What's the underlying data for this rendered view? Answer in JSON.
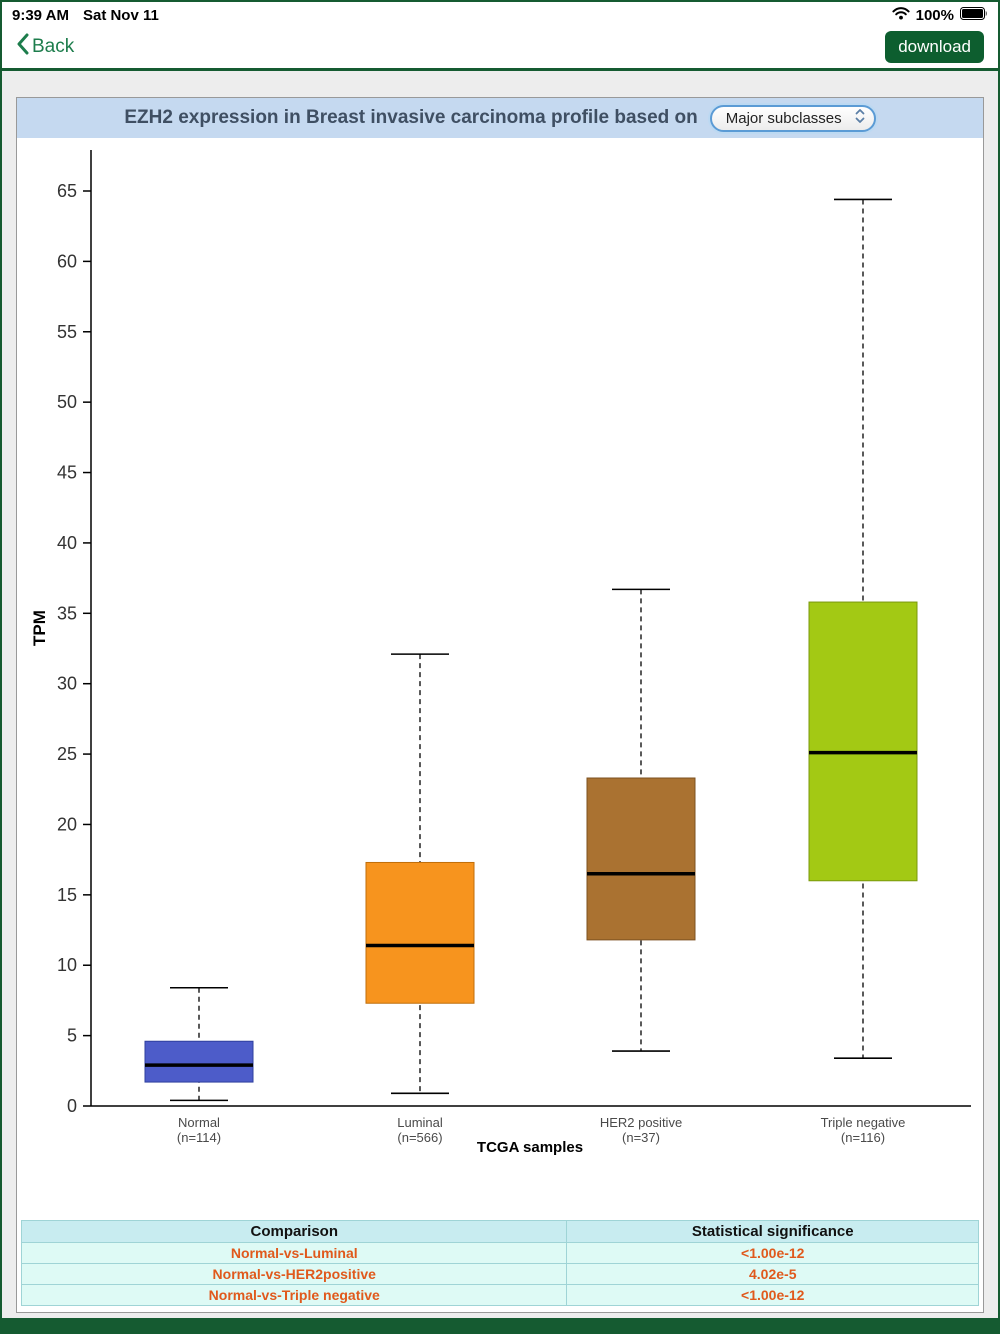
{
  "status_bar": {
    "time": "9:39 AM",
    "date": "Sat Nov 11",
    "battery_percent": "100%"
  },
  "nav": {
    "back_label": "Back",
    "download_label": "download"
  },
  "panel": {
    "title": "EZH2 expression in Breast invasive carcinoma profile based on",
    "subclass_selector_value": "Major subclasses"
  },
  "chart_data": {
    "type": "boxplot",
    "title": "EZH2 expression in Breast invasive carcinoma profile based on",
    "ylabel": "TPM",
    "xlabel": "TCGA samples",
    "ylim": [
      0,
      67
    ],
    "yticks": [
      0,
      5,
      10,
      15,
      20,
      25,
      30,
      35,
      40,
      45,
      50,
      55,
      60,
      65
    ],
    "grid": false,
    "groups": [
      {
        "label": "Normal",
        "n_label": "(n=114)",
        "color": "#4d5cc9",
        "border": "#2e3f9e",
        "min": 0.4,
        "q1": 1.7,
        "median": 2.9,
        "q3": 4.6,
        "max": 8.4
      },
      {
        "label": "Luminal",
        "n_label": "(n=566)",
        "color": "#f7941e",
        "border": "#c06e0a",
        "min": 0.9,
        "q1": 7.3,
        "median": 11.4,
        "q3": 17.3,
        "max": 32.1
      },
      {
        "label": "HER2 positive",
        "n_label": "(n=37)",
        "color": "#aa7231",
        "border": "#7c5120",
        "min": 3.9,
        "q1": 11.8,
        "median": 16.5,
        "q3": 23.3,
        "max": 36.7
      },
      {
        "label": "Triple negative",
        "n_label": "(n=116)",
        "color": "#a3c914",
        "border": "#7a980c",
        "min": 3.4,
        "q1": 16.0,
        "median": 25.1,
        "q3": 35.8,
        "max": 64.4
      }
    ]
  },
  "table": {
    "headers": [
      "Comparison",
      "Statistical significance"
    ],
    "rows": [
      [
        "Normal-vs-Luminal",
        "<1.00e-12"
      ],
      [
        "Normal-vs-HER2positive",
        "4.02e-5"
      ],
      [
        "Normal-vs-Triple negative",
        "<1.00e-12"
      ]
    ]
  },
  "colors": {
    "frame_green": "#155b31",
    "back_link": "#1d7d4c",
    "header_blue": "#c5d9f0",
    "table_header_bg": "#c8ecf0",
    "table_row_bg": "#defaf5",
    "table_text_orange": "#e0591c"
  }
}
